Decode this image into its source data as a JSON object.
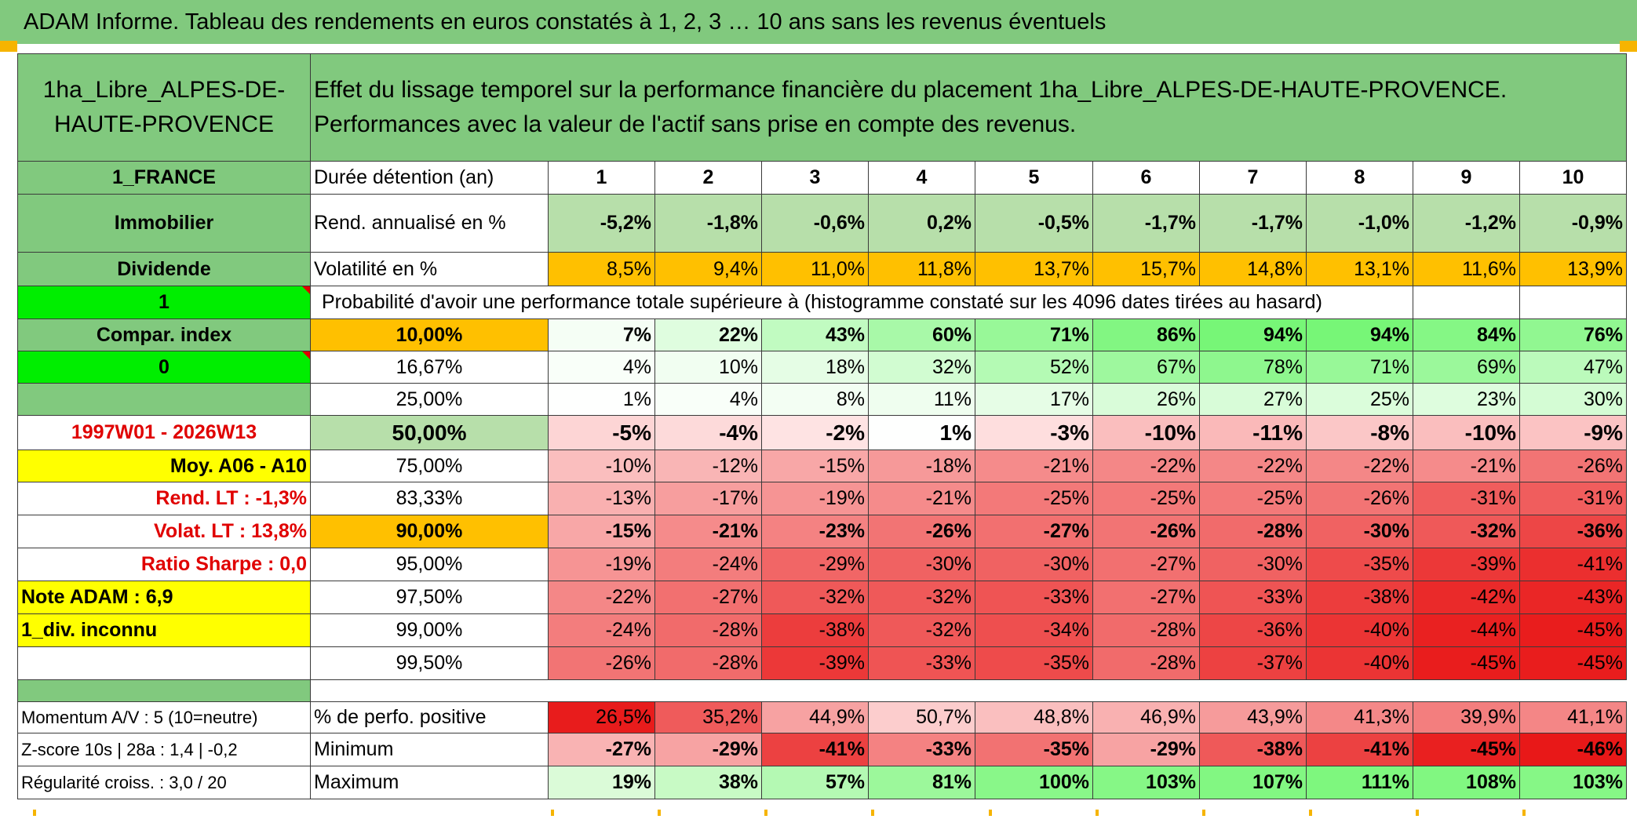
{
  "title": "ADAM Informe. Tableau des rendements en euros constatés à 1, 2, 3 … 10 ans sans les revenus éventuels",
  "header": {
    "name": "1ha_Libre_ALPES-DE-HAUTE-PROVENCE",
    "description": "Effet du lissage temporel sur la performance financière du placement 1ha_Libre_ALPES-DE-HAUTE-PROVENCE. Performances avec la valeur de l'actif sans prise en compte des revenus."
  },
  "side": {
    "country": "1_FRANCE",
    "category": "Immobilier",
    "dividend": "Dividende",
    "one": "1",
    "compar": "Compar. index",
    "zero": "0",
    "period": "1997W01 - 2026W13",
    "moy": "Moy. A06 - A10",
    "rend_lt": "Rend. LT :   -1,3%",
    "volat_lt": "Volat. LT :   13,8%",
    "sharpe": "Ratio Sharpe :    0,0",
    "note": "Note ADAM : 6,9",
    "div": "1_div. inconnu"
  },
  "metrics": {
    "duration_label": "Durée détention (an)",
    "years": [
      "1",
      "2",
      "3",
      "4",
      "5",
      "6",
      "7",
      "8",
      "9",
      "10"
    ],
    "rend_label": "Rend. annualisé en %",
    "rend": [
      "-5,2%",
      "-1,8%",
      "-0,6%",
      "0,2%",
      "-0,5%",
      "-1,7%",
      "-1,7%",
      "-1,0%",
      "-1,2%",
      "-0,9%"
    ],
    "vol_label": "Volatilité en %",
    "vol": [
      "8,5%",
      "9,4%",
      "11,0%",
      "11,8%",
      "13,7%",
      "15,7%",
      "14,8%",
      "13,1%",
      "11,6%",
      "13,9%"
    ]
  },
  "prob_title": "Probabilité d'avoir une performance totale supérieure à (histogramme constaté sur les 4096 dates tirées au hasard)",
  "prob_rows": [
    {
      "label": "10,00%",
      "values": [
        "7%",
        "22%",
        "43%",
        "60%",
        "71%",
        "86%",
        "94%",
        "94%",
        "84%",
        "76%"
      ]
    },
    {
      "label": "16,67%",
      "values": [
        "4%",
        "10%",
        "18%",
        "32%",
        "52%",
        "67%",
        "78%",
        "71%",
        "69%",
        "47%"
      ]
    },
    {
      "label": "25,00%",
      "values": [
        "1%",
        "4%",
        "8%",
        "11%",
        "17%",
        "26%",
        "27%",
        "25%",
        "23%",
        "30%"
      ]
    },
    {
      "label": "50,00%",
      "values": [
        "-5%",
        "-4%",
        "-2%",
        "1%",
        "-3%",
        "-10%",
        "-11%",
        "-8%",
        "-10%",
        "-9%"
      ]
    },
    {
      "label": "75,00%",
      "values": [
        "-10%",
        "-12%",
        "-15%",
        "-18%",
        "-21%",
        "-22%",
        "-22%",
        "-22%",
        "-21%",
        "-26%"
      ]
    },
    {
      "label": "83,33%",
      "values": [
        "-13%",
        "-17%",
        "-19%",
        "-21%",
        "-25%",
        "-25%",
        "-25%",
        "-26%",
        "-31%",
        "-31%"
      ]
    },
    {
      "label": "90,00%",
      "values": [
        "-15%",
        "-21%",
        "-23%",
        "-26%",
        "-27%",
        "-26%",
        "-28%",
        "-30%",
        "-32%",
        "-36%"
      ]
    },
    {
      "label": "95,00%",
      "values": [
        "-19%",
        "-24%",
        "-29%",
        "-30%",
        "-30%",
        "-27%",
        "-30%",
        "-35%",
        "-39%",
        "-41%"
      ]
    },
    {
      "label": "97,50%",
      "values": [
        "-22%",
        "-27%",
        "-32%",
        "-32%",
        "-33%",
        "-27%",
        "-33%",
        "-38%",
        "-42%",
        "-43%"
      ]
    },
    {
      "label": "99,00%",
      "values": [
        "-24%",
        "-28%",
        "-38%",
        "-32%",
        "-34%",
        "-28%",
        "-36%",
        "-40%",
        "-44%",
        "-45%"
      ]
    },
    {
      "label": "99,50%",
      "values": [
        "-26%",
        "-28%",
        "-39%",
        "-33%",
        "-35%",
        "-28%",
        "-37%",
        "-40%",
        "-45%",
        "-45%"
      ]
    }
  ],
  "bottom": {
    "momentum": "Momentum A/V : 5 (10=neutre)",
    "zscore": "Z-score 10s | 28a : 1,4 | -0,2",
    "regularite": "Régularité croiss. : 3,0 / 20",
    "pos_label": "% de perfo. positive",
    "pos": [
      "26,5%",
      "35,2%",
      "44,9%",
      "50,7%",
      "48,8%",
      "46,9%",
      "43,9%",
      "41,3%",
      "39,9%",
      "41,1%"
    ],
    "min_label": "Minimum",
    "min": [
      "-27%",
      "-29%",
      "-41%",
      "-33%",
      "-35%",
      "-29%",
      "-38%",
      "-41%",
      "-45%",
      "-46%"
    ],
    "max_label": "Maximum",
    "max": [
      "19%",
      "38%",
      "57%",
      "81%",
      "100%",
      "103%",
      "107%",
      "111%",
      "108%",
      "103%"
    ]
  },
  "colors": {
    "header_green": "#81c97e",
    "light_green": "#b7dfaa",
    "orange": "#ffc000",
    "yellow": "#ffff00",
    "bright_green": "#00ee00",
    "red": "#e00000"
  }
}
